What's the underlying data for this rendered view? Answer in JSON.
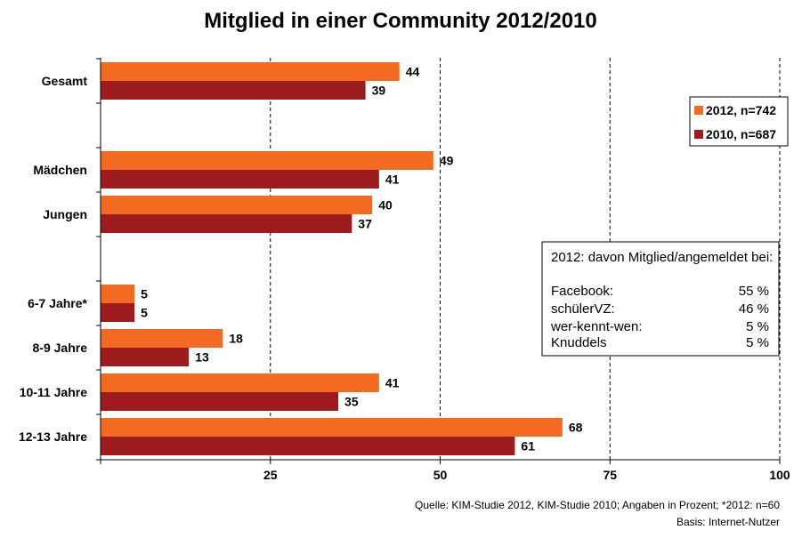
{
  "colors": {
    "s2012": "#F26B21",
    "s2010": "#9B1B1F",
    "axis": "#000000"
  },
  "chart_data": {
    "type": "bar",
    "orientation": "horizontal",
    "title": "Mitglied in einer Community 2012/2010",
    "categories": [
      "Gesamt",
      "Mädchen",
      "Jungen",
      "6-7 Jahre*",
      "8-9 Jahre",
      "10-11 Jahre",
      "12-13 Jahre"
    ],
    "series": [
      {
        "name": "2012, n=742",
        "values": [
          44,
          49,
          40,
          5,
          18,
          41,
          68
        ]
      },
      {
        "name": "2010, n=687",
        "values": [
          39,
          41,
          37,
          5,
          13,
          35,
          61
        ]
      }
    ],
    "xlim": [
      0,
      100
    ],
    "xticks": [
      25,
      50,
      75,
      100
    ],
    "grid": "dashed vertical",
    "legend": "right"
  },
  "info_box": {
    "heading": "2012: davon Mitglied/angemeldet bei:",
    "rows": [
      {
        "label": "Facebook:",
        "value": "55 %"
      },
      {
        "label": "schülerVZ:",
        "value": "46 %"
      },
      {
        "label": "wer-kennt-wen:",
        "value": "5 %"
      },
      {
        "label": "Knuddels",
        "value": "5 %"
      }
    ]
  },
  "footer": {
    "source": "Quelle: KIM-Studie 2012, KIM-Studie 2010; Angaben in Prozent; *2012: n=60",
    "basis": "Basis: Internet-Nutzer"
  }
}
